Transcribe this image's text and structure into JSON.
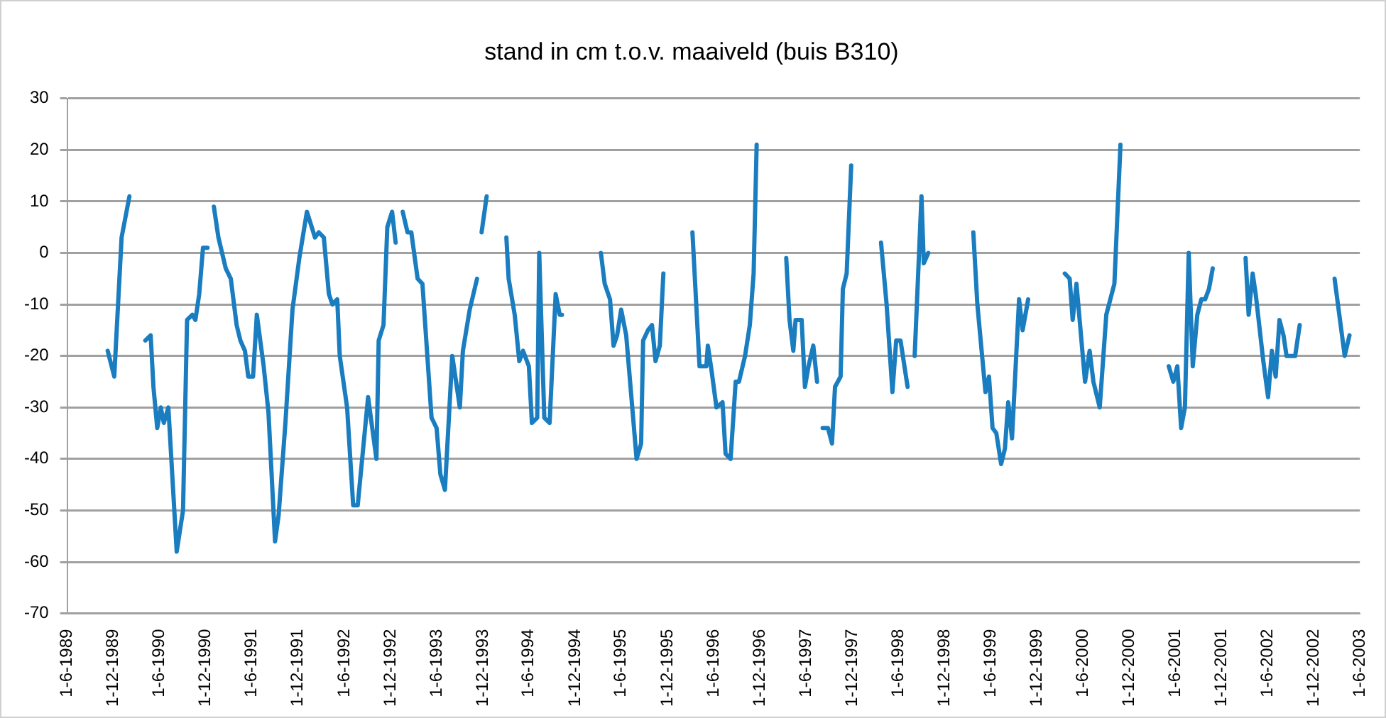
{
  "chart_data": {
    "type": "line",
    "title": "stand in cm t.o.v. maaiveld (buis B310)",
    "xlim": [
      "1989-06-01",
      "2003-06-01"
    ],
    "xticks": [
      {
        "value": "1989-06-01",
        "label": "1-6-1989"
      },
      {
        "value": "1989-12-01",
        "label": "1-12-1989"
      },
      {
        "value": "1990-06-01",
        "label": "1-6-1990"
      },
      {
        "value": "1990-12-01",
        "label": "1-12-1990"
      },
      {
        "value": "1991-06-01",
        "label": "1-6-1991"
      },
      {
        "value": "1991-12-01",
        "label": "1-12-1991"
      },
      {
        "value": "1992-06-01",
        "label": "1-6-1992"
      },
      {
        "value": "1992-12-01",
        "label": "1-12-1992"
      },
      {
        "value": "1993-06-01",
        "label": "1-6-1993"
      },
      {
        "value": "1993-12-01",
        "label": "1-12-1993"
      },
      {
        "value": "1994-06-01",
        "label": "1-6-1994"
      },
      {
        "value": "1994-12-01",
        "label": "1-12-1994"
      },
      {
        "value": "1995-06-01",
        "label": "1-6-1995"
      },
      {
        "value": "1995-12-01",
        "label": "1-12-1995"
      },
      {
        "value": "1996-06-01",
        "label": "1-6-1996"
      },
      {
        "value": "1996-12-01",
        "label": "1-12-1996"
      },
      {
        "value": "1997-06-01",
        "label": "1-6-1997"
      },
      {
        "value": "1997-12-01",
        "label": "1-12-1997"
      },
      {
        "value": "1998-06-01",
        "label": "1-6-1998"
      },
      {
        "value": "1998-12-01",
        "label": "1-12-1998"
      },
      {
        "value": "1999-06-01",
        "label": "1-6-1999"
      },
      {
        "value": "1999-12-01",
        "label": "1-12-1999"
      },
      {
        "value": "2000-06-01",
        "label": "1-6-2000"
      },
      {
        "value": "2000-12-01",
        "label": "1-12-2000"
      },
      {
        "value": "2001-06-01",
        "label": "1-6-2001"
      },
      {
        "value": "2001-12-01",
        "label": "1-12-2001"
      },
      {
        "value": "2002-06-01",
        "label": "1-6-2002"
      },
      {
        "value": "2002-12-01",
        "label": "1-12-2002"
      },
      {
        "value": "2003-06-01",
        "label": "1-6-2003"
      }
    ],
    "ylim": [
      -70,
      30
    ],
    "yticks": [
      -70,
      -60,
      -50,
      -40,
      -30,
      -20,
      -10,
      0,
      10,
      20,
      30
    ],
    "grid": "y",
    "legend": false,
    "marker": "none",
    "line_style": "solid",
    "series": [
      {
        "color": "#1a7dc0",
        "x": [
          "1989-11-08",
          "1989-12-04",
          "1990-01-02",
          "1990-02-02",
          "1990-03-05",
          "1990-04-06",
          "1990-04-27",
          "1990-05-08",
          "1990-05-23",
          "1990-06-06",
          "1990-06-18",
          "1990-07-06",
          "1990-08-08",
          "1990-09-02",
          "1990-09-18",
          "1990-10-09",
          "1990-10-21",
          "1990-11-05",
          "1990-11-20",
          "1990-12-08",
          "1990-12-20",
          "1991-01-02",
          "1991-01-20",
          "1991-02-18",
          "1991-03-10",
          "1991-04-02",
          "1991-04-17",
          "1991-05-05",
          "1991-05-18",
          "1991-06-06",
          "1991-06-21",
          "1991-07-18",
          "1991-08-06",
          "1991-09-01",
          "1991-09-15",
          "1991-10-12",
          "1991-11-09",
          "1991-12-06",
          "1992-01-05",
          "1992-02-06",
          "1992-02-21",
          "1992-03-12",
          "1992-04-01",
          "1992-04-15",
          "1992-05-04",
          "1992-05-14",
          "1992-06-12",
          "1992-07-06",
          "1992-07-24",
          "1992-09-03",
          "1992-10-06",
          "1992-10-15",
          "1992-11-03",
          "1992-11-18",
          "1992-12-07",
          "1992-12-21",
          "1993-01-10",
          "1993-01-18",
          "1993-02-06",
          "1993-02-21",
          "1993-03-18",
          "1993-04-06",
          "1993-05-12",
          "1993-06-01",
          "1993-06-16",
          "1993-07-04",
          "1993-08-02",
          "1993-09-01",
          "1993-09-13",
          "1993-10-10",
          "1993-11-08",
          "1993-11-17",
          "1993-11-26",
          "1993-12-16",
          "1994-02-01",
          "1994-03-04",
          "1994-03-13",
          "1994-04-06",
          "1994-04-24",
          "1994-05-09",
          "1994-06-01",
          "1994-06-13",
          "1994-07-04",
          "1994-07-12",
          "1994-08-01",
          "1994-08-22",
          "1994-09-15",
          "1994-10-01",
          "1994-10-10",
          "1995-01-01",
          "1995-03-13",
          "1995-03-28",
          "1995-04-18",
          "1995-05-02",
          "1995-05-16",
          "1995-06-01",
          "1995-06-21",
          "1995-08-01",
          "1995-08-19",
          "1995-08-27",
          "1995-09-15",
          "1995-10-01",
          "1995-10-15",
          "1995-11-01",
          "1995-11-15",
          "1996-01-01",
          "1996-03-09",
          "1996-04-06",
          "1996-05-03",
          "1996-05-09",
          "1996-05-24",
          "1996-06-12",
          "1996-07-06",
          "1996-07-18",
          "1996-08-07",
          "1996-08-27",
          "1996-09-09",
          "1996-10-03",
          "1996-10-22",
          "1996-11-06",
          "1996-11-18",
          "1997-01-01",
          "1997-03-15",
          "1997-03-28",
          "1997-04-12",
          "1997-04-21",
          "1997-05-15",
          "1997-05-28",
          "1997-06-11",
          "1997-06-30",
          "1997-07-15",
          "1997-07-25",
          "1997-08-06",
          "1997-08-27",
          "1997-09-12",
          "1997-09-24",
          "1997-10-16",
          "1997-10-25",
          "1997-11-09",
          "1997-11-27",
          "1998-01-15",
          "1998-03-25",
          "1998-04-16",
          "1998-05-09",
          "1998-05-24",
          "1998-06-10",
          "1998-07-08",
          "1998-07-20",
          "1998-08-05",
          "1998-09-01",
          "1998-09-10",
          "1998-09-28",
          "1998-12-15",
          "1999-03-25",
          "1999-04-10",
          "1999-05-12",
          "1999-05-26",
          "1999-06-09",
          "1999-06-24",
          "1999-07-13",
          "1999-07-28",
          "1999-08-10",
          "1999-08-25",
          "1999-09-22",
          "1999-10-06",
          "1999-10-28",
          "2000-01-01",
          "2000-03-21",
          "2000-04-09",
          "2000-04-21",
          "2000-05-06",
          "2000-06-09",
          "2000-06-27",
          "2000-07-12",
          "2000-08-06",
          "2000-09-01",
          "2000-10-03",
          "2000-10-27",
          "2001-02-01",
          "2001-05-06",
          "2001-05-24",
          "2001-06-09",
          "2001-06-24",
          "2001-07-09",
          "2001-07-24",
          "2001-08-09",
          "2001-08-27",
          "2001-09-12",
          "2001-09-27",
          "2001-10-12",
          "2001-10-27",
          "2001-12-15",
          "2002-03-06",
          "2002-03-18",
          "2002-04-03",
          "2002-04-15",
          "2002-05-15",
          "2002-06-03",
          "2002-06-18",
          "2002-07-03",
          "2002-07-18",
          "2002-08-03",
          "2002-08-15",
          "2002-09-18",
          "2002-10-06",
          "2002-12-15",
          "2003-02-21",
          "2003-04-02",
          "2003-04-21"
        ],
        "values": [
          -19,
          -24,
          3,
          11,
          null,
          -17,
          -16,
          -26,
          -34,
          -30,
          -33,
          -30,
          -58,
          -50,
          -13,
          -12,
          -13,
          -8,
          1,
          1,
          null,
          9,
          3,
          -3,
          -5,
          -14,
          -17,
          -19,
          -24,
          -24,
          -12,
          -22,
          -31,
          -56,
          -51,
          -33,
          -11,
          -1,
          8,
          3,
          4,
          3,
          -8,
          -10,
          -9,
          -20,
          -30,
          -49,
          -49,
          -28,
          -40,
          -17,
          -14,
          5,
          8,
          2,
          null,
          8,
          4,
          4,
          -5,
          -6,
          -32,
          -34,
          -43,
          -46,
          -20,
          -30,
          -19,
          -11,
          -5,
          null,
          4,
          11,
          null,
          3,
          -5,
          -12,
          -21,
          -19,
          -22,
          -33,
          -32,
          0,
          -32,
          -33,
          -8,
          -12,
          -12,
          null,
          0,
          -6,
          -9,
          -18,
          -16,
          -11,
          -16,
          -40,
          -37,
          -17,
          -15,
          -14,
          -21,
          -18,
          -4,
          null,
          4,
          -22,
          -22,
          -18,
          -23,
          -30,
          -29,
          -39,
          -40,
          -25,
          -25,
          -20,
          -14,
          -4,
          21,
          null,
          -1,
          -13,
          -19,
          -13,
          -13,
          -26,
          -22,
          -18,
          -25,
          null,
          -34,
          -34,
          -37,
          -26,
          -24,
          -7,
          -4,
          17,
          null,
          2,
          -10,
          -27,
          -17,
          -17,
          -26,
          null,
          -20,
          11,
          -2,
          0,
          null,
          4,
          -10,
          -27,
          -24,
          -34,
          -35,
          -41,
          -38,
          -29,
          -36,
          -9,
          -15,
          -9,
          null,
          -4,
          -5,
          -13,
          -6,
          -25,
          -19,
          -25,
          -30,
          -12,
          -6,
          21,
          null,
          -22,
          -25,
          -22,
          -34,
          -30,
          0,
          -22,
          -12,
          -9,
          -9,
          -7,
          -3,
          null,
          -1,
          -12,
          -4,
          -8,
          -21,
          -28,
          -19,
          -24,
          -13,
          -16,
          -20,
          -20,
          -14,
          null,
          -5,
          -20,
          -16
        ]
      }
    ]
  }
}
